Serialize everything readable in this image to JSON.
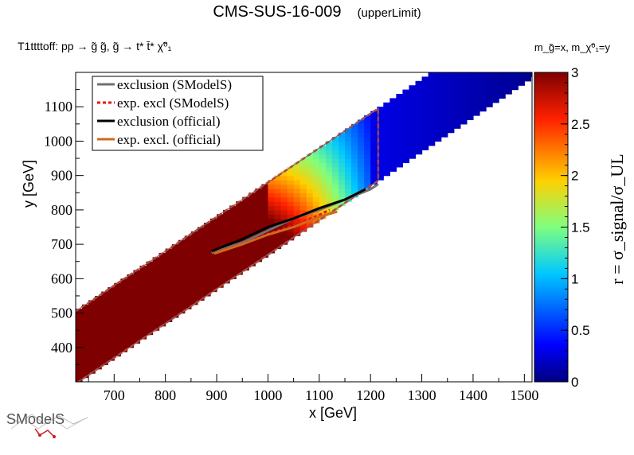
{
  "header": {
    "title": "CMS-SUS-16-009",
    "subtitle": "(upperLimit)",
    "process": "T1ttttoff: pp → g̃ g̃, g̃ → t* t̄* χ̃⁰₁",
    "axis_note": "m_g̃=x, m_χ̃⁰₁=y"
  },
  "logo": {
    "text": "SModelS"
  },
  "colors": {
    "exclusion_smodels": "#707070",
    "exp_excl_smodels": "#e8160c",
    "exclusion_official": "#000000",
    "exp_excl_official": "#d2691e"
  },
  "chart_data": {
    "type": "heatmap",
    "title": "CMS-SUS-16-009",
    "xlabel": "x [GeV]",
    "ylabel": "y [GeV]",
    "zlabel": "r = σ_signal/σ_UL",
    "xlim": [
      625,
      1515
    ],
    "ylim": [
      300,
      1200
    ],
    "zlim": [
      0,
      3
    ],
    "xticks": [
      700,
      800,
      900,
      1000,
      1100,
      1200,
      1300,
      1400,
      1500
    ],
    "yticks": [
      400,
      500,
      600,
      700,
      800,
      900,
      1000,
      1100
    ],
    "zticks": [
      0,
      0.5,
      1,
      1.5,
      2,
      2.5,
      3
    ],
    "legend": {
      "position": "top-left",
      "entries": [
        "exclusion (SModelS)",
        "exp. excl (SModelS)",
        "exclusion (official)",
        "exp. excl. (official)"
      ]
    },
    "grid": false,
    "heatmap_summary": {
      "r_ge_3_band": {
        "x_from": 625,
        "x_to": 1000
      },
      "transition_band": {
        "x_from": 1000,
        "x_to": 1200,
        "r_from": 3,
        "r_to": 0.5
      },
      "low_r_band": {
        "x_from": 1200,
        "x_to": 1515,
        "r_from": 0.3,
        "r_to": 0.05
      },
      "band_y_below_diagonal_min": 120,
      "band_y_below_diagonal_max": 330
    },
    "series": [
      {
        "name": "exclusion (SModelS)",
        "x": [
          890,
          950,
          1000,
          1050,
          1100,
          1150,
          1200,
          1215
        ],
        "y": [
          675,
          705,
          740,
          775,
          800,
          830,
          860,
          875
        ]
      },
      {
        "name": "exp. excl (SModelS)",
        "x": [
          895,
          950,
          1000,
          1050,
          1100,
          1120
        ],
        "y": [
          675,
          700,
          730,
          755,
          785,
          800
        ]
      },
      {
        "name": "exclusion (official)",
        "x": [
          890,
          950,
          1000,
          1050,
          1100,
          1150,
          1190
        ],
        "y": [
          680,
          715,
          750,
          775,
          805,
          830,
          860
        ]
      },
      {
        "name": "exp. excl. (official)",
        "x": [
          895,
          950,
          1000,
          1050,
          1100,
          1135
        ],
        "y": [
          673,
          700,
          728,
          750,
          780,
          795
        ]
      }
    ]
  }
}
